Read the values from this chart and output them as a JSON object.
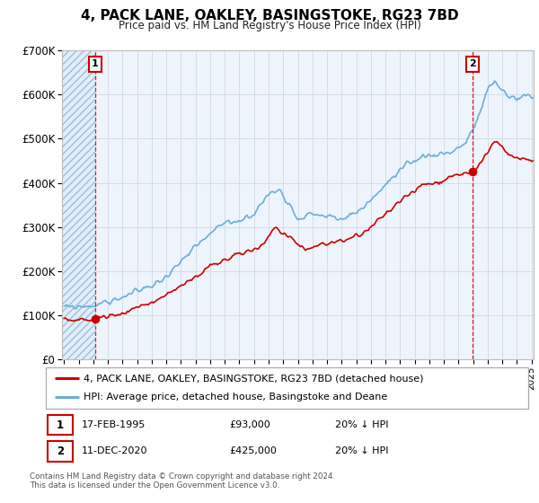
{
  "title": "4, PACK LANE, OAKLEY, BASINGSTOKE, RG23 7BD",
  "subtitle": "Price paid vs. HM Land Registry's House Price Index (HPI)",
  "sale1_year": 1995,
  "sale1_month": 2,
  "sale1_price": 93000,
  "sale2_year": 2020,
  "sale2_month": 12,
  "sale2_price": 425000,
  "ylim_min": 0,
  "ylim_max": 700000,
  "yticks": [
    0,
    100000,
    200000,
    300000,
    400000,
    500000,
    600000,
    700000
  ],
  "ytick_labels": [
    "£0",
    "£100K",
    "£200K",
    "£300K",
    "£400K",
    "£500K",
    "£600K",
    "£700K"
  ],
  "hpi_color": "#6baed6",
  "price_color": "#cc0000",
  "dashed_color": "#cc0000",
  "hatch_bg_color": "#ddeeff",
  "plot_bg_color": "#eef4fb",
  "grid_color": "#d0d8e4",
  "legend1_label": "4, PACK LANE, OAKLEY, BASINGSTOKE, RG23 7BD (detached house)",
  "legend2_label": "HPI: Average price, detached house, Basingstoke and Deane",
  "table_row1": [
    "1",
    "17-FEB-1995",
    "£93,000",
    "20% ↓ HPI"
  ],
  "table_row2": [
    "2",
    "11-DEC-2020",
    "£425,000",
    "20% ↓ HPI"
  ],
  "footnote1": "Contains HM Land Registry data © Crown copyright and database right 2024.",
  "footnote2": "This data is licensed under the Open Government Licence v3.0.",
  "start_year": 1993,
  "end_year": 2025,
  "hpi_kp_x": [
    1993.0,
    1994.0,
    1995.0,
    1996.5,
    1998.0,
    1999.5,
    2001.0,
    2002.5,
    2004.0,
    2005.0,
    2006.0,
    2007.0,
    2007.8,
    2009.0,
    2010.0,
    2011.0,
    2012.0,
    2013.5,
    2015.0,
    2016.5,
    2017.5,
    2018.5,
    2019.5,
    2020.5,
    2021.0,
    2021.5,
    2022.0,
    2022.5,
    2023.0,
    2023.5,
    2024.0,
    2024.5,
    2025.0
  ],
  "hpi_kp_y": [
    118000,
    120000,
    122000,
    135000,
    155000,
    175000,
    220000,
    270000,
    310000,
    315000,
    330000,
    375000,
    385000,
    320000,
    330000,
    325000,
    315000,
    345000,
    395000,
    440000,
    460000,
    465000,
    470000,
    490000,
    520000,
    560000,
    610000,
    630000,
    610000,
    595000,
    590000,
    600000,
    595000
  ],
  "prop_kp_x": [
    1993.0,
    1994.5,
    1995.17,
    1997.0,
    1999.0,
    2001.0,
    2003.0,
    2005.0,
    2006.5,
    2007.5,
    2008.5,
    2009.5,
    2011.0,
    2012.0,
    2013.5,
    2015.0,
    2016.5,
    2017.5,
    2018.5,
    2019.5,
    2020.92,
    2021.5,
    2022.0,
    2022.5,
    2023.0,
    2023.5,
    2024.5,
    2025.0
  ],
  "prop_kp_y": [
    88000,
    90000,
    93000,
    105000,
    130000,
    165000,
    210000,
    240000,
    255000,
    300000,
    275000,
    250000,
    265000,
    265000,
    285000,
    330000,
    370000,
    395000,
    400000,
    415000,
    425000,
    445000,
    470000,
    490000,
    480000,
    460000,
    455000,
    450000
  ],
  "noise_seed": 99,
  "hpi_noise": 5000,
  "prop_noise": 4000,
  "n_points": 380
}
